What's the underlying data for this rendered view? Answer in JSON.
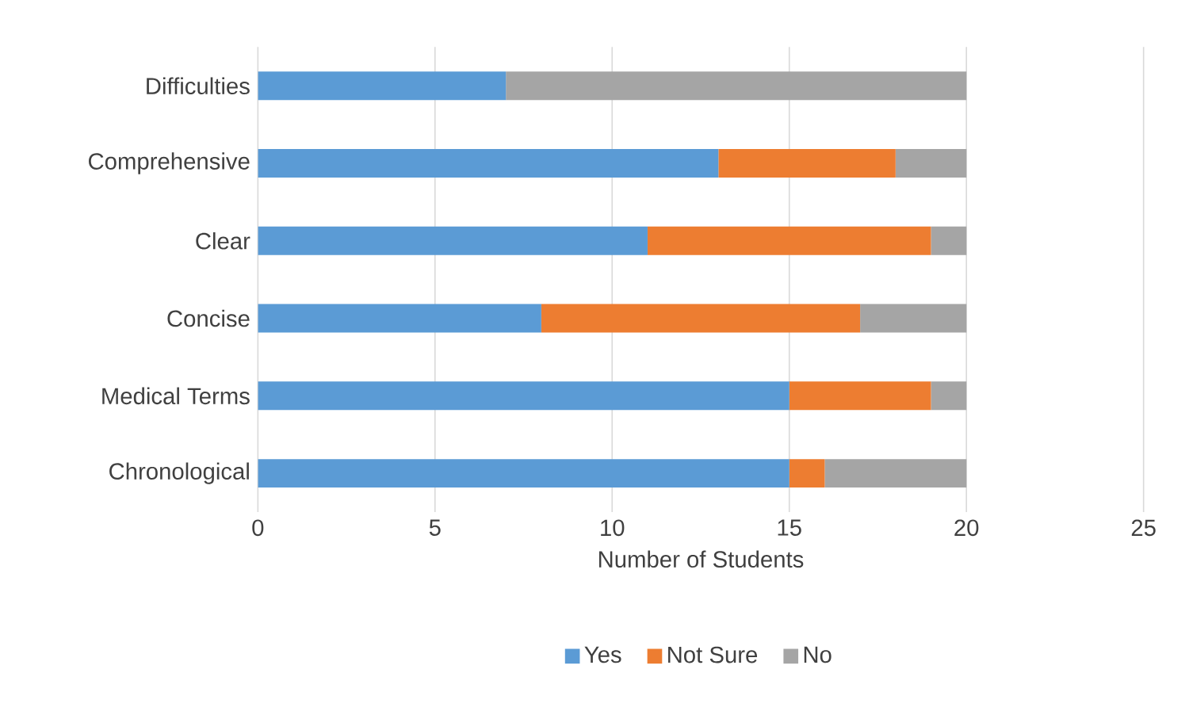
{
  "chart_data": {
    "type": "bar",
    "orientation": "horizontal",
    "stacked": true,
    "xlabel": "Number of Students",
    "categories": [
      "Difficulties",
      "Comprehensive",
      "Clear",
      "Concise",
      "Medical Terms",
      "Chronological"
    ],
    "series": [
      {
        "name": "Yes",
        "color": "#5b9bd5",
        "values": [
          7,
          13,
          11,
          8,
          15,
          15
        ]
      },
      {
        "name": "Not Sure",
        "color": "#ed7d31",
        "values": [
          0,
          5,
          8,
          9,
          4,
          1
        ]
      },
      {
        "name": "No",
        "color": "#a5a5a5",
        "values": [
          13,
          2,
          1,
          3,
          1,
          4
        ]
      }
    ],
    "xlim": [
      0,
      25
    ],
    "xticks": [
      0,
      5,
      10,
      15,
      20,
      25
    ],
    "grid": "x",
    "legend": "bottom"
  }
}
